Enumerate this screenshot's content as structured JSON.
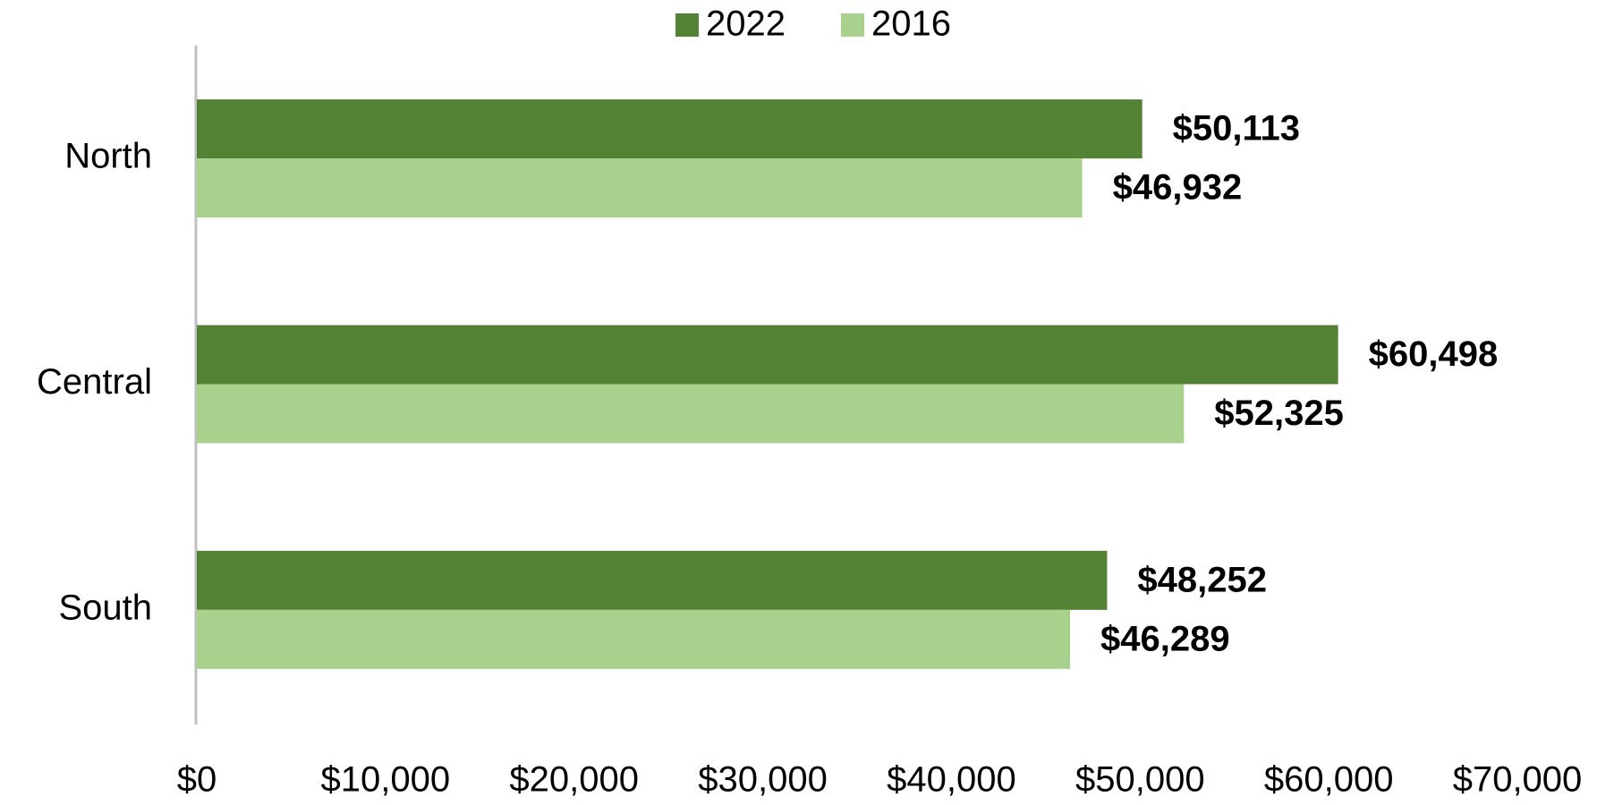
{
  "chart_data": {
    "type": "hbar",
    "categories": [
      "North",
      "Central",
      "South"
    ],
    "series": [
      {
        "name": "2022",
        "color": "#548235",
        "values": [
          50113,
          60498,
          48252
        ],
        "value_labels": [
          "$50,113",
          "$60,498",
          "$48,252"
        ]
      },
      {
        "name": "2016",
        "color": "#a9d18e",
        "values": [
          46932,
          52325,
          46289
        ],
        "value_labels": [
          "$46,932",
          "$52,325",
          "$46,289"
        ]
      }
    ],
    "xlim": [
      0,
      70000
    ],
    "xticks": [
      {
        "value": 0,
        "label": "$0"
      },
      {
        "value": 10000,
        "label": "$10,000"
      },
      {
        "value": 20000,
        "label": "$20,000"
      },
      {
        "value": 30000,
        "label": "$30,000"
      },
      {
        "value": 40000,
        "label": "$40,000"
      },
      {
        "value": 50000,
        "label": "$50,000"
      },
      {
        "value": 60000,
        "label": "$60,000"
      },
      {
        "value": 70000,
        "label": "$70,000"
      }
    ],
    "grid": false,
    "legend": "top"
  }
}
